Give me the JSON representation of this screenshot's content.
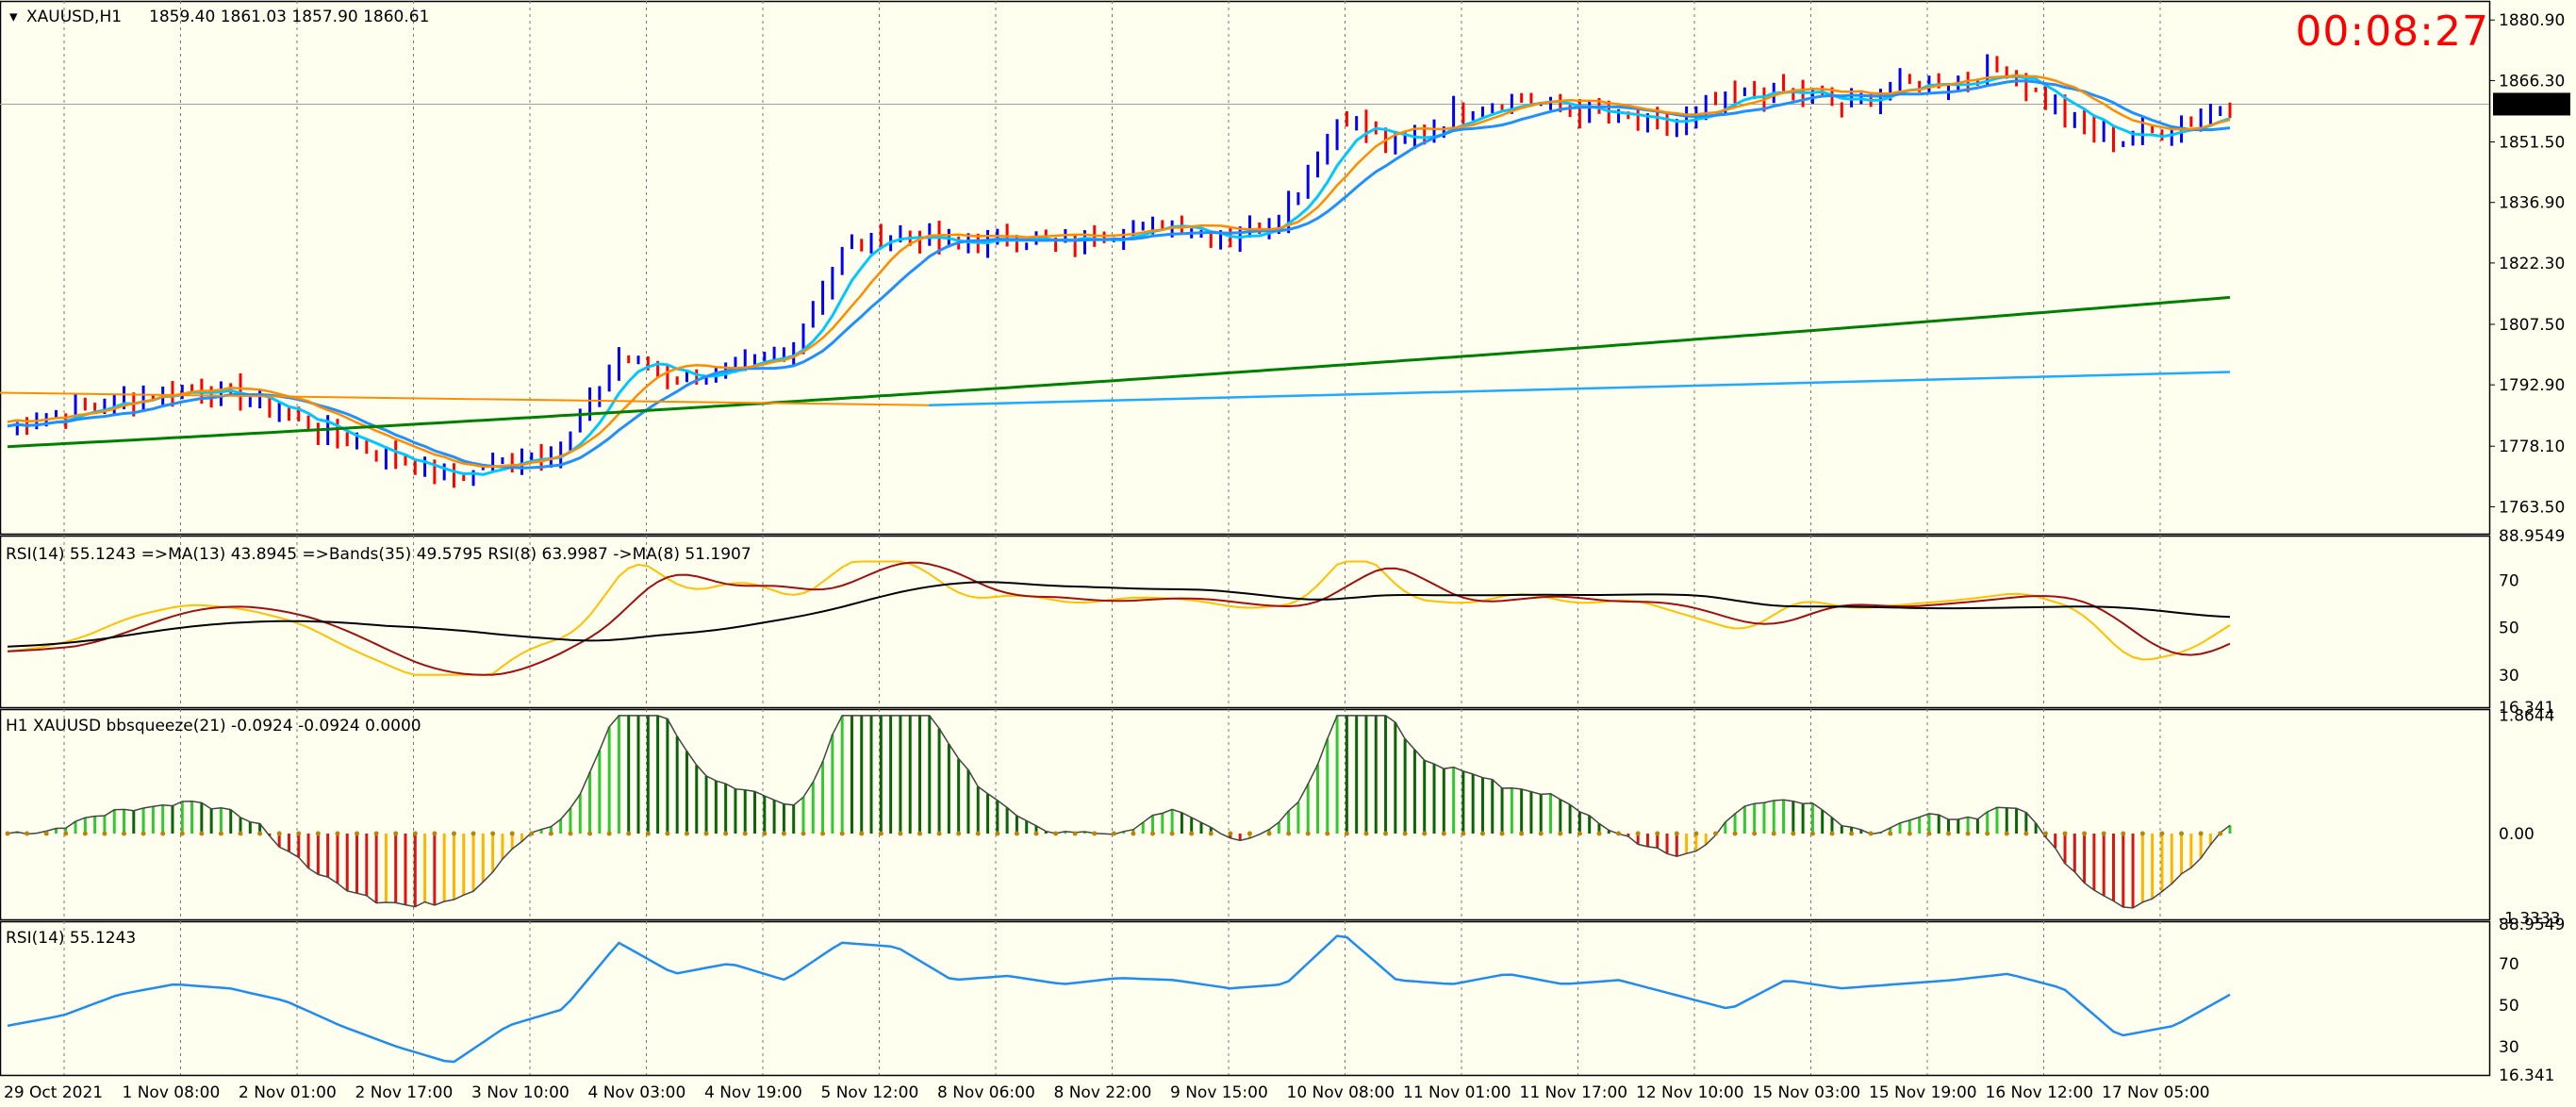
{
  "title_bar": {
    "symbol": "XAUUSD,H1",
    "ohlc": "1859.40 1861.03 1857.90 1860.61"
  },
  "countdown": "00:08:27",
  "price_axis": {
    "ticks": [
      "1880.90",
      "1866.30",
      "1851.50",
      "1836.90",
      "1822.30",
      "1807.50",
      "1792.90",
      "1778.10",
      "1763.50"
    ],
    "current": "1860.61"
  },
  "panels": {
    "rsi_ma": {
      "label": "RSI(14) 55.1243  =>MA(13) 43.8945  =>Bands(35) 49.5795  RSI(8) 63.9987  ->MA(8) 51.1907",
      "ticks": [
        "88.9549",
        "70",
        "50",
        "30",
        "16.341"
      ]
    },
    "squeeze": {
      "label": "H1 XAUUSD bbsqueeze(21) -0.0924 -0.0924 0.0000",
      "ticks": [
        "1.8644",
        "0.00",
        "-1.3333"
      ]
    },
    "rsi": {
      "label": "RSI(14) 55.1243",
      "ticks": [
        "88.9549",
        "70",
        "50",
        "30",
        "16.341"
      ]
    }
  },
  "time_axis": [
    "29 Oct 2021",
    "1 Nov 08:00",
    "2 Nov 01:00",
    "2 Nov 17:00",
    "3 Nov 10:00",
    "4 Nov 03:00",
    "4 Nov 19:00",
    "5 Nov 12:00",
    "8 Nov 06:00",
    "8 Nov 22:00",
    "9 Nov 15:00",
    "10 Nov 08:00",
    "11 Nov 01:00",
    "11 Nov 17:00",
    "12 Nov 10:00",
    "15 Nov 03:00",
    "15 Nov 19:00",
    "16 Nov 12:00",
    "17 Nov 05:00"
  ],
  "colors": {
    "up_bar": "#0000ff",
    "down_bar": "#ff0000",
    "ma_fast": "#00c8ff",
    "ma_mid": "#1e90ff",
    "ma_slow": "#008000",
    "ma_orange": "#ff8c00",
    "rsi_blue": "#1e8cf0"
  },
  "chart_data": {
    "type": "line",
    "title": "XAUUSD,H1",
    "x_labels": [
      "29 Oct 2021",
      "1 Nov 08:00",
      "2 Nov 01:00",
      "2 Nov 17:00",
      "3 Nov 10:00",
      "4 Nov 03:00",
      "4 Nov 19:00",
      "5 Nov 12:00",
      "8 Nov 06:00",
      "8 Nov 22:00",
      "9 Nov 15:00",
      "10 Nov 08:00",
      "11 Nov 01:00",
      "11 Nov 17:00",
      "12 Nov 10:00",
      "15 Nov 03:00",
      "15 Nov 19:00",
      "16 Nov 12:00",
      "17 Nov 05:00"
    ],
    "ylim": [
      1757,
      1883
    ],
    "price_close": [
      1783,
      1786,
      1789,
      1792,
      1791,
      1786,
      1780,
      1775,
      1770,
      1775,
      1778,
      1800,
      1795,
      1796,
      1800,
      1825,
      1830,
      1826,
      1829,
      1827,
      1830,
      1832,
      1828,
      1835,
      1858,
      1850,
      1858,
      1862,
      1860,
      1857,
      1855,
      1862,
      1864,
      1860,
      1865,
      1866,
      1869,
      1858,
      1852,
      1855,
      1860
    ],
    "rsi14": [
      40,
      45,
      55,
      60,
      58,
      52,
      40,
      30,
      22,
      40,
      48,
      80,
      65,
      70,
      62,
      80,
      78,
      62,
      64,
      60,
      63,
      62,
      58,
      60,
      85,
      62,
      60,
      65,
      60,
      62,
      55,
      48,
      62,
      58,
      60,
      62,
      65,
      58,
      35,
      40,
      55
    ]
  }
}
